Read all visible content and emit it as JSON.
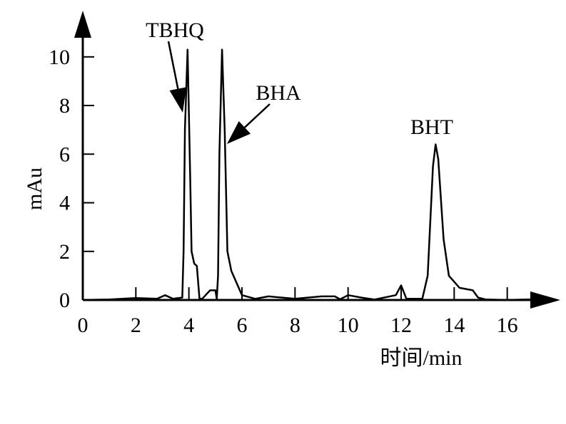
{
  "chart_data": {
    "type": "line",
    "xlabel": "时间/min",
    "ylabel": "mAu",
    "annotations": [
      "TBHQ",
      "BHA",
      "BHT"
    ],
    "x": [
      0,
      1,
      2,
      2.8,
      3.1,
      3.4,
      3.75,
      3.8,
      3.85,
      3.95,
      4.05,
      4.1,
      4.2,
      4.3,
      4.4,
      4.5,
      4.8,
      5.0,
      5.05,
      5.1,
      5.15,
      5.25,
      5.35,
      5.45,
      5.6,
      6.0,
      6.5,
      7,
      8,
      9,
      9.5,
      9.7,
      10,
      10.5,
      11,
      11.8,
      12,
      12.2,
      12.8,
      13.0,
      13.2,
      13.3,
      13.4,
      13.6,
      13.8,
      14.2,
      14.7,
      14.9,
      15.2,
      16,
      17,
      17.4
    ],
    "values": [
      0,
      0.02,
      0.08,
      0.05,
      0.2,
      0.05,
      0.1,
      2,
      7,
      10.3,
      5,
      2,
      1.5,
      1.4,
      0.05,
      0.05,
      0.4,
      0.4,
      0.05,
      1,
      6,
      10.3,
      7,
      2,
      1.2,
      0.2,
      0.05,
      0.15,
      0.05,
      0.15,
      0.15,
      0.03,
      0.2,
      0.1,
      0.02,
      0.2,
      0.6,
      0.05,
      0.05,
      1,
      5.5,
      6.4,
      5.8,
      2.5,
      1,
      0.5,
      0.4,
      0.1,
      0.02,
      0,
      0.03,
      0.05
    ],
    "color": "#000000",
    "xlim": [
      0,
      18
    ],
    "ylim": [
      0,
      11.9
    ],
    "xticks": [
      0,
      2,
      4,
      6,
      8,
      10,
      12,
      14,
      16
    ],
    "yticks": [
      0,
      2,
      4,
      6,
      8,
      10
    ]
  }
}
